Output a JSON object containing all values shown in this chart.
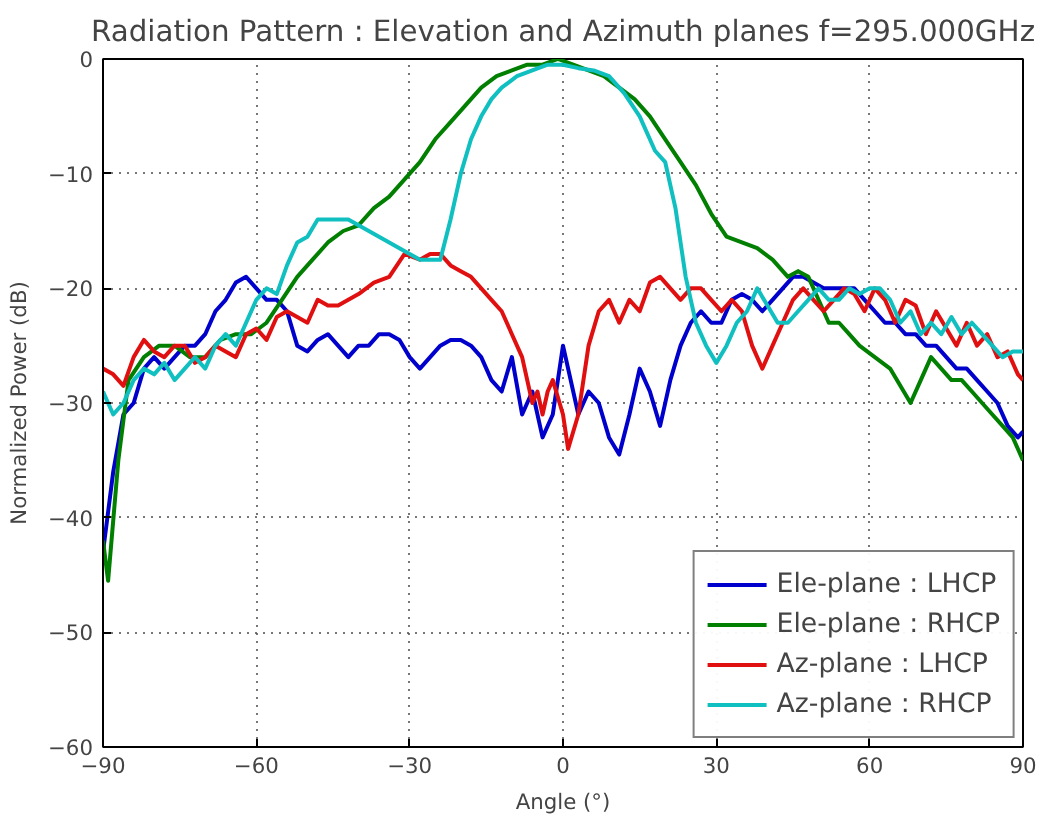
{
  "chart_data": {
    "type": "line",
    "title": "Radiation Pattern : Elevation and Azimuth planes f=295.000GHz",
    "xlabel": "Angle (°)",
    "ylabel": "Normalized Power (dB)",
    "xlim": [
      -90,
      90
    ],
    "ylim": [
      -60,
      0
    ],
    "xticks": [
      -90,
      -60,
      -30,
      0,
      30,
      60,
      90
    ],
    "yticks": [
      -60,
      -50,
      -40,
      -30,
      -20,
      -10,
      0
    ],
    "grid": true,
    "legend": "bottom right",
    "line_style": "solid",
    "series": [
      {
        "name": "Ele-plane : LHCP",
        "color": "#0000cc",
        "x": [
          -90,
          -88,
          -86,
          -84,
          -82,
          -80,
          -78,
          -76,
          -74,
          -72,
          -70,
          -68,
          -66,
          -64,
          -62,
          -60,
          -58,
          -56,
          -54,
          -52,
          -50,
          -48,
          -46,
          -44,
          -42,
          -40,
          -38,
          -36,
          -34,
          -32,
          -30,
          -28,
          -26,
          -24,
          -22,
          -20,
          -18,
          -16,
          -14,
          -12,
          -10,
          -8,
          -6,
          -4,
          -2,
          -1,
          0,
          2,
          3,
          5,
          7,
          9,
          11,
          13,
          15,
          17,
          19,
          21,
          23,
          25,
          27,
          29,
          31,
          33,
          35,
          37,
          39,
          41,
          43,
          45,
          47,
          49,
          51,
          53,
          55,
          57,
          59,
          61,
          63,
          65,
          67,
          69,
          71,
          73,
          75,
          77,
          79,
          81,
          83,
          85,
          87,
          89,
          90
        ],
        "values": [
          -43,
          -36,
          -31,
          -30,
          -27,
          -26,
          -27,
          -26,
          -25,
          -25,
          -24,
          -22,
          -21,
          -19.5,
          -19,
          -20,
          -21,
          -21,
          -22,
          -25,
          -25.5,
          -24.5,
          -24,
          -25,
          -26,
          -25,
          -25,
          -24,
          -24,
          -24.5,
          -26,
          -27,
          -26,
          -25,
          -24.5,
          -24.5,
          -25,
          -26,
          -28,
          -29,
          -26,
          -31,
          -29,
          -33,
          -31,
          -28,
          -25,
          -29,
          -31,
          -29,
          -30,
          -33,
          -34.5,
          -31,
          -27,
          -29,
          -32,
          -28,
          -25,
          -23,
          -22,
          -23,
          -23,
          -21,
          -20.5,
          -21,
          -22,
          -21,
          -20,
          -19,
          -19,
          -19.5,
          -20,
          -20,
          -20,
          -20,
          -21,
          -22,
          -23,
          -23,
          -24,
          -24,
          -25,
          -25,
          -26,
          -27,
          -27,
          -28,
          -29,
          -30,
          -32,
          -33,
          -32.5
        ]
      },
      {
        "name": "Ele-plane : RHCP",
        "color": "#007f00",
        "x": [
          -90,
          -89,
          -87,
          -85,
          -82,
          -79,
          -76,
          -73,
          -70,
          -67,
          -64,
          -61,
          -58,
          -55,
          -52,
          -49,
          -46,
          -43,
          -40,
          -37,
          -34,
          -31,
          -28,
          -25,
          -22,
          -19,
          -16,
          -13,
          -10,
          -7,
          -4,
          -1,
          2,
          5,
          8,
          11,
          14,
          17,
          20,
          23,
          26,
          29,
          32,
          35,
          38,
          41,
          44,
          46,
          48,
          50,
          52,
          54,
          56,
          58,
          61,
          64,
          66,
          68,
          70,
          72,
          74,
          76,
          78,
          80,
          82,
          84,
          86,
          88,
          90
        ],
        "values": [
          -42,
          -45.5,
          -35,
          -28,
          -26,
          -25,
          -25,
          -26,
          -26,
          -24.5,
          -24,
          -24,
          -23,
          -21,
          -19,
          -17.5,
          -16,
          -15,
          -14.5,
          -13,
          -12,
          -10.5,
          -9,
          -7,
          -5.5,
          -4,
          -2.5,
          -1.5,
          -1,
          -0.5,
          -0.5,
          0,
          -0.5,
          -1,
          -1.5,
          -2.5,
          -3.5,
          -5,
          -7,
          -9,
          -11,
          -13.5,
          -15.5,
          -16,
          -16.5,
          -17.5,
          -19,
          -18.5,
          -19,
          -21,
          -23,
          -23,
          -24,
          -25,
          -26,
          -27,
          -28.5,
          -30,
          -28,
          -26,
          -27,
          -28,
          -28,
          -29,
          -30,
          -31,
          -32,
          -33,
          -35
        ]
      },
      {
        "name": "Az-plane : LHCP",
        "color": "#e01010",
        "x": [
          -90,
          -88,
          -86,
          -84,
          -82,
          -80,
          -78,
          -76,
          -74,
          -72,
          -70,
          -68,
          -66,
          -64,
          -62,
          -60,
          -58,
          -56,
          -54,
          -52,
          -50,
          -48,
          -46,
          -44,
          -42,
          -40,
          -37,
          -34,
          -31,
          -28,
          -26,
          -24,
          -22,
          -20,
          -18,
          -16,
          -14,
          -12,
          -10,
          -8,
          -6,
          -5,
          -4,
          -3,
          -2,
          0,
          1,
          3,
          5,
          7,
          9,
          11,
          13,
          15,
          17,
          19,
          21,
          23,
          25,
          27,
          29,
          31,
          33,
          35,
          37,
          39,
          41,
          43,
          45,
          47,
          49,
          51,
          53,
          55,
          57,
          59,
          61,
          63,
          65,
          67,
          69,
          71,
          73,
          75,
          77,
          79,
          81,
          83,
          85,
          87,
          89,
          90
        ],
        "values": [
          -27,
          -27.5,
          -28.5,
          -26,
          -24.5,
          -25.5,
          -26,
          -25,
          -25,
          -26.5,
          -26,
          -25,
          -25.5,
          -26,
          -24,
          -23.5,
          -24.5,
          -22.5,
          -22,
          -22.5,
          -23,
          -21,
          -21.5,
          -21.5,
          -21,
          -20.5,
          -19.5,
          -19,
          -17,
          -17.5,
          -17,
          -17,
          -18,
          -18.5,
          -19,
          -20,
          -21,
          -22,
          -24,
          -26,
          -30,
          -29,
          -31,
          -29,
          -28,
          -31,
          -34,
          -31,
          -25,
          -22,
          -21,
          -23,
          -21,
          -22,
          -19.5,
          -19,
          -20,
          -21,
          -20,
          -20,
          -21,
          -22,
          -21,
          -22,
          -25,
          -27,
          -25,
          -23,
          -21,
          -20,
          -21,
          -22,
          -21,
          -20,
          -20.5,
          -22,
          -20,
          -21,
          -23,
          -21,
          -21.5,
          -24,
          -22,
          -23.5,
          -25,
          -23,
          -25,
          -24,
          -26,
          -25.5,
          -27.5,
          -28
        ]
      },
      {
        "name": "Az-plane : RHCP",
        "color": "#10bfbf",
        "x": [
          -90,
          -88,
          -86,
          -84,
          -82,
          -80,
          -78,
          -76,
          -74,
          -72,
          -70,
          -68,
          -66,
          -64,
          -62,
          -60,
          -58,
          -56,
          -54,
          -52,
          -50,
          -48,
          -45,
          -42,
          -40,
          -38,
          -36,
          -34,
          -32,
          -30,
          -28,
          -26,
          -24,
          -22,
          -20,
          -18,
          -16,
          -14,
          -12,
          -9,
          -6,
          -3,
          0,
          3,
          6,
          9,
          12,
          15,
          18,
          20,
          22,
          24,
          26,
          28,
          30,
          32,
          34,
          36,
          38,
          40,
          42,
          44,
          46,
          48,
          50,
          52,
          54,
          56,
          58,
          60,
          62,
          64,
          66,
          68,
          70,
          72,
          74,
          76,
          78,
          80,
          82,
          84,
          86,
          88,
          90
        ],
        "values": [
          -29,
          -31,
          -30,
          -28,
          -27,
          -27.5,
          -26.5,
          -28,
          -27,
          -26,
          -27,
          -25,
          -24,
          -25,
          -23,
          -21,
          -20,
          -20.5,
          -18,
          -16,
          -15.5,
          -14,
          -14,
          -14,
          -14.5,
          -15,
          -15.5,
          -16,
          -16.5,
          -17,
          -17.5,
          -17.5,
          -17.5,
          -14,
          -10,
          -7,
          -5,
          -3.5,
          -2.5,
          -1.5,
          -1,
          -0.5,
          -0.5,
          -0.8,
          -1,
          -1.5,
          -3,
          -5,
          -8,
          -9,
          -13,
          -19,
          -23,
          -25,
          -26.5,
          -25,
          -23,
          -22,
          -20,
          -21.5,
          -23,
          -23,
          -22,
          -21,
          -20,
          -21,
          -21,
          -20,
          -20.5,
          -20,
          -20,
          -21,
          -23,
          -22,
          -24,
          -23,
          -24,
          -22.5,
          -24,
          -23,
          -24,
          -25,
          -26,
          -25.5,
          -25.5
        ]
      }
    ]
  }
}
